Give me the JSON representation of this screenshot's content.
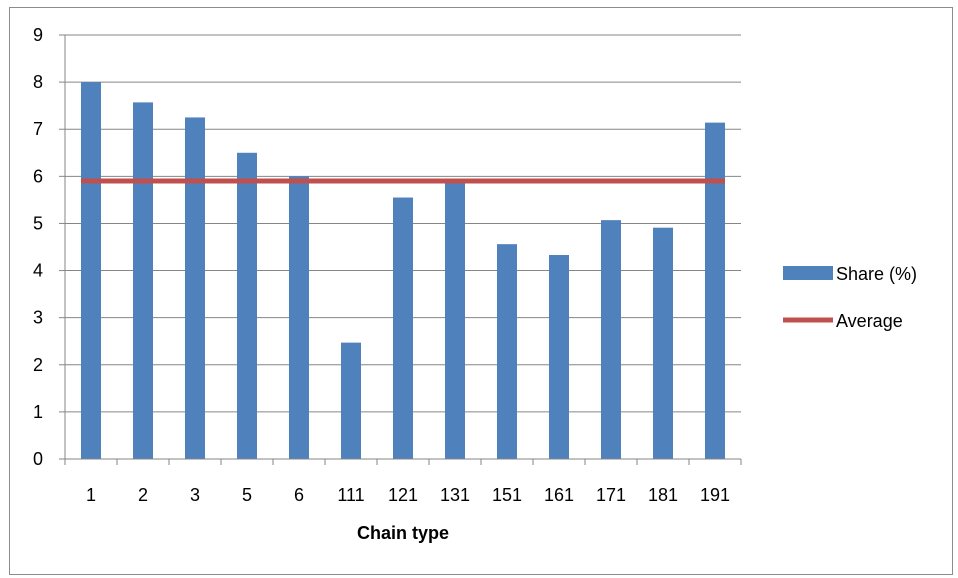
{
  "chart_data": {
    "type": "bar",
    "categories": [
      "1",
      "2",
      "3",
      "5",
      "6",
      "111",
      "121",
      "131",
      "151",
      "161",
      "171",
      "181",
      "191"
    ],
    "series": [
      {
        "name": "Share (%)",
        "type": "bar",
        "color": "#4f81bd",
        "values": [
          8.0,
          7.57,
          7.25,
          6.5,
          6.0,
          2.47,
          5.55,
          5.9,
          4.56,
          4.33,
          5.07,
          4.91,
          7.14
        ]
      },
      {
        "name": "Average",
        "type": "line",
        "color": "#c0504d",
        "value": 5.9
      }
    ],
    "xlabel": "Chain type",
    "ylabel": "",
    "ylim": [
      0,
      9
    ],
    "yticks": [
      "0",
      "1",
      "2",
      "3",
      "4",
      "5",
      "6",
      "7",
      "8",
      "9"
    ],
    "grid": true,
    "legend_position": "right"
  }
}
